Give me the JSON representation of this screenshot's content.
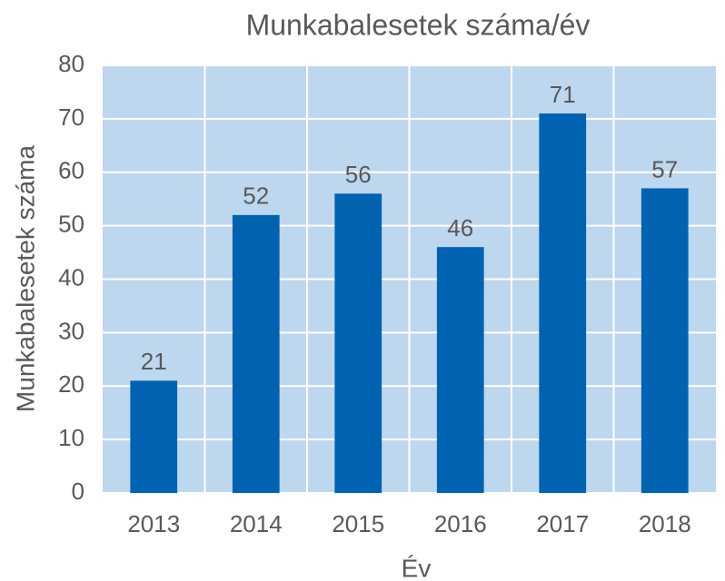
{
  "chart_data": {
    "type": "bar",
    "title": "Munkabalesetek száma/év",
    "x_label": "Év",
    "y_label": "Munkabalesetek száma",
    "categories": [
      "2013",
      "2014",
      "2015",
      "2016",
      "2017",
      "2018"
    ],
    "values": [
      21,
      52,
      56,
      46,
      71,
      57
    ],
    "color": "#0063b1",
    "background": "#bdd7ee",
    "ylim": [
      0,
      80
    ],
    "yticks": [
      0,
      10,
      20,
      30,
      40,
      50,
      60,
      70,
      80
    ],
    "grid": true
  }
}
